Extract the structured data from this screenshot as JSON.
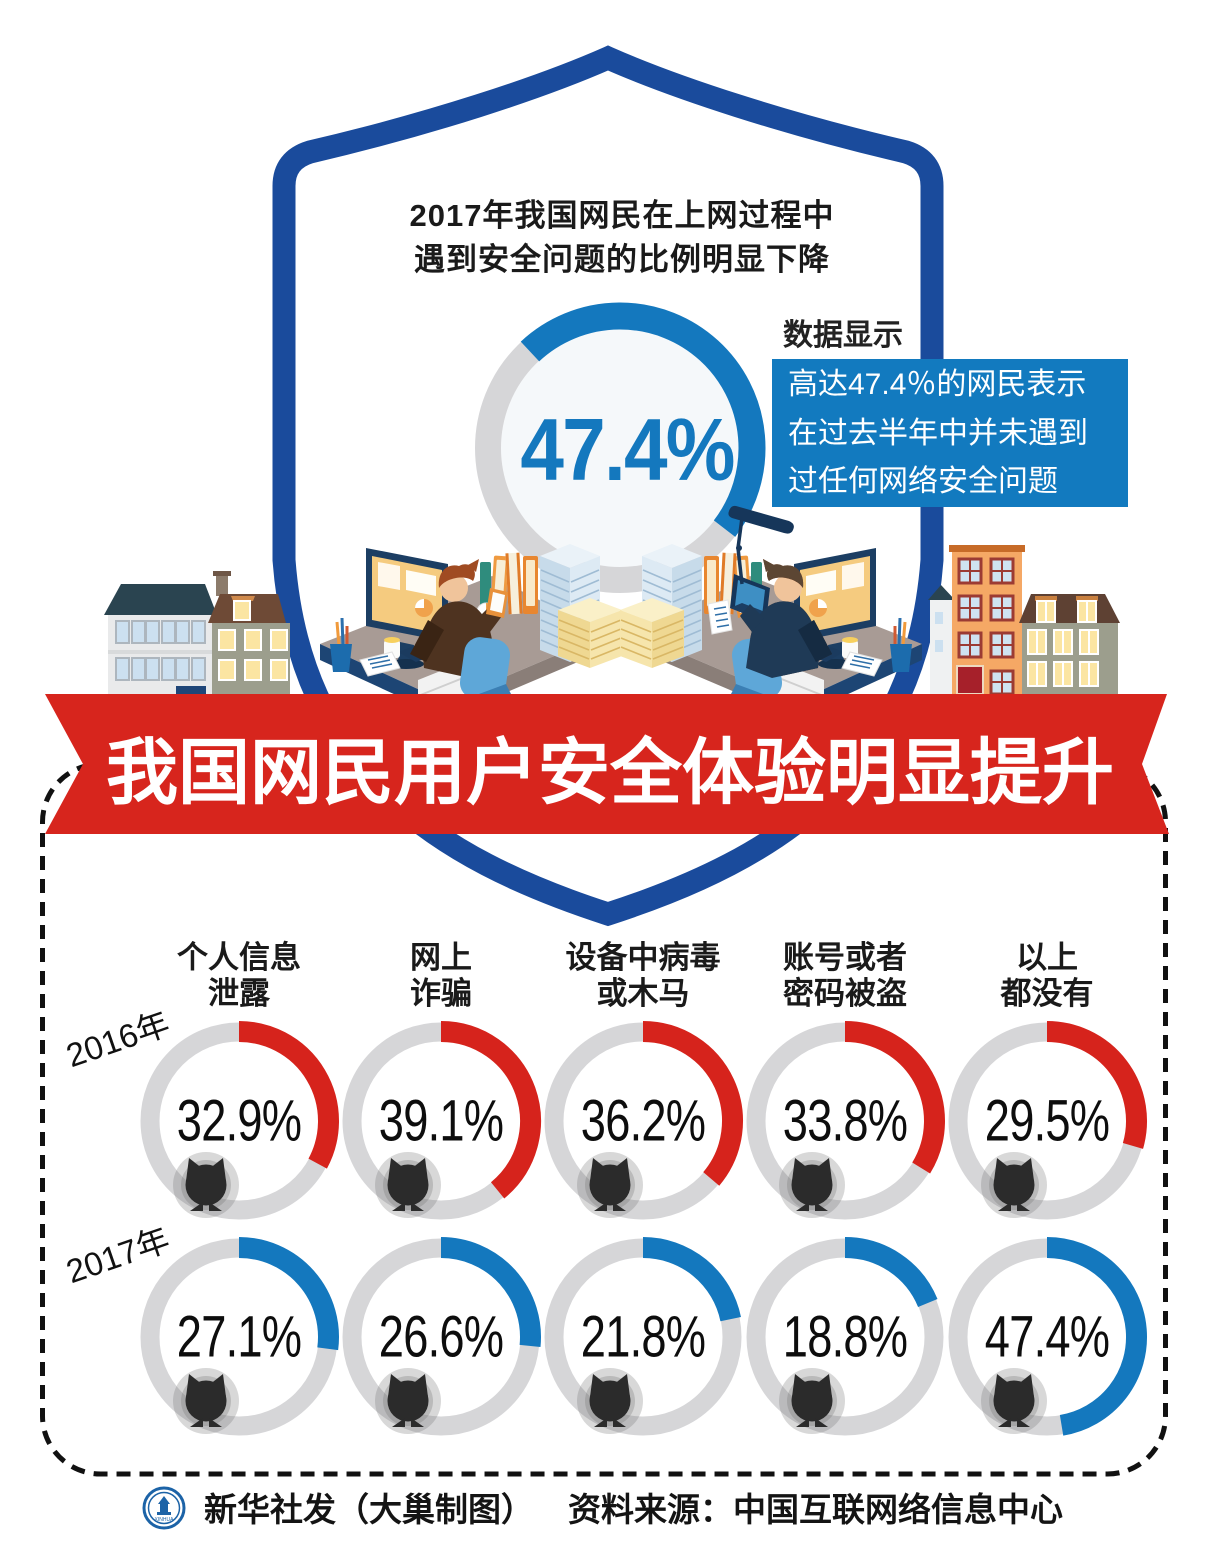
{
  "title_block": {
    "line1": "2017年我国网民在上网过程中",
    "line2": "遇到安全问题的比例明显下降"
  },
  "data_label": "数据显示",
  "callout": {
    "line1": "高达47.4％的网民表示",
    "line2": "在过去半年中并未遇到",
    "line3": "过任何网络安全问题",
    "bg_color": "#127ABF"
  },
  "banner": {
    "text": "我国网民用户安全体验明显提升",
    "bg_color": "#D7251D"
  },
  "chart_data": {
    "type": "donut-grid",
    "title": "我国网民用户安全体验明显提升",
    "unit": "%",
    "legend_position": "left-rotated-row-labels",
    "grid": false,
    "categories": [
      {
        "line1": "个人信息",
        "line2": "泄露"
      },
      {
        "line1": "网上",
        "line2": "诈骗"
      },
      {
        "line1": "设备中病毒",
        "line2": "或木马"
      },
      {
        "line1": "账号或者",
        "line2": "密码被盗"
      },
      {
        "line1": "以上",
        "line2": "都没有"
      }
    ],
    "series": [
      {
        "name": "2016年",
        "color": "#D6231C",
        "values": [
          32.9,
          39.1,
          36.2,
          33.8,
          29.5
        ]
      },
      {
        "name": "2017年",
        "color": "#1478BE",
        "values": [
          27.1,
          26.6,
          21.8,
          18.8,
          47.4
        ]
      }
    ],
    "big_donut": {
      "label": "47.4%",
      "value": 47.4,
      "color": "#1478BE",
      "track_color": "#D6D6D8",
      "start_angle_deg_from_north": -43,
      "caption": "2017年我国网民在上网过程中遇到安全问题的比例明显下降"
    },
    "ring_track_color": "#D6D6D8",
    "value_suffix": "%"
  },
  "icons": {
    "cat_color": "#2b2b2b"
  },
  "colors": {
    "shield_blue": "#1A4B9C",
    "accent_blue": "#1478BE",
    "banner_red": "#D7251D",
    "ring_gray": "#D6D6D8"
  },
  "footer": {
    "credit": "新华社发（大巢制图）",
    "source": "资料来源：中国互联网络信息中心",
    "logo_text": "XINHUA"
  }
}
